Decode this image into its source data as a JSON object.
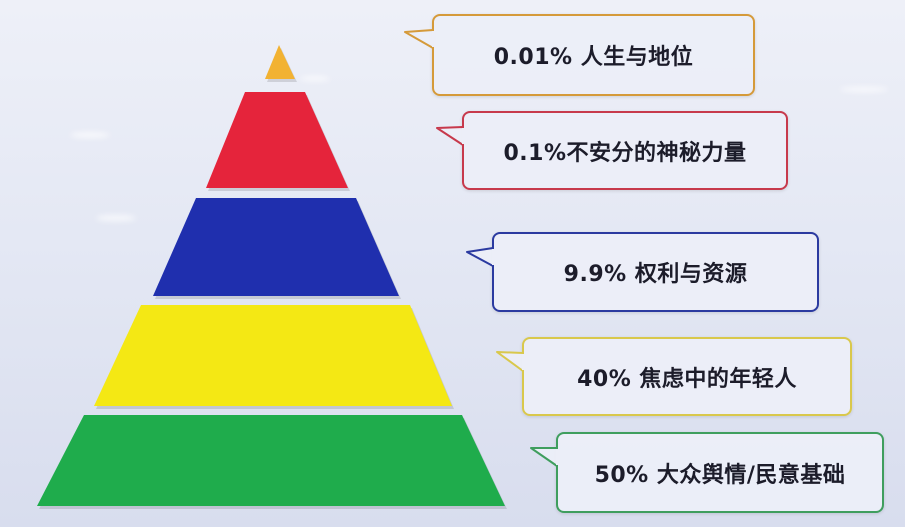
{
  "tiers": [
    {
      "label": "0.01% 人生与地位",
      "color": "#f2b232",
      "border": "#d59a3a"
    },
    {
      "label": "0.1%不安分的神秘力量",
      "color": "#e5243b",
      "border": "#c7394c"
    },
    {
      "label": "9.9% 权利与资源",
      "color": "#1f2fae",
      "border": "#2b3aa0"
    },
    {
      "label": "40% 焦虑中的年轻人",
      "color": "#f4e814",
      "border": "#d9c84c"
    },
    {
      "label": "50% 大众舆情/民意基础",
      "color": "#1fac4c",
      "border": "#3f9e5e"
    }
  ]
}
